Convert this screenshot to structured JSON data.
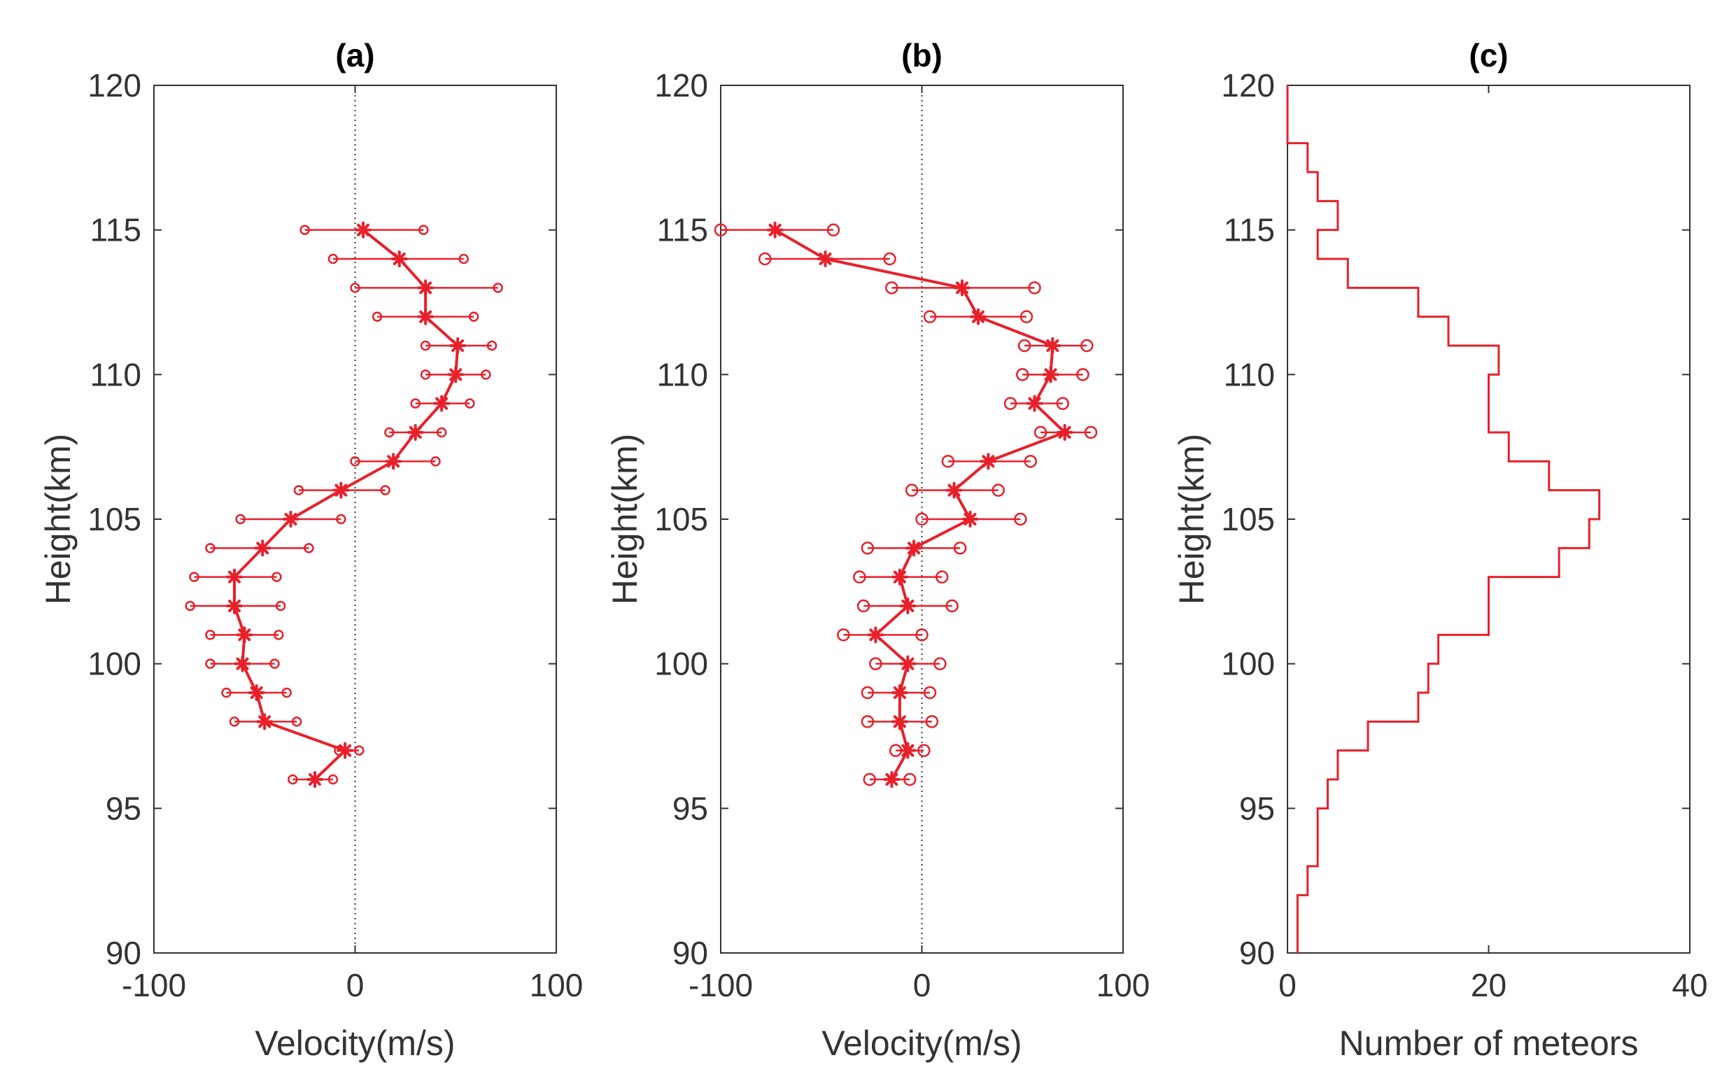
{
  "colors": {
    "series": "#e8202a",
    "axis": "#333333"
  },
  "chart_data": [
    {
      "type": "line",
      "title": "(a)",
      "xlabel": "Velocity(m/s)",
      "ylabel": "Height(km)",
      "xlim": [
        -100,
        100
      ],
      "ylim": [
        90,
        120
      ],
      "xticks": [
        -100,
        0,
        100
      ],
      "yticks": [
        90,
        95,
        100,
        105,
        110,
        115,
        120
      ],
      "zero_line": true,
      "heights": [
        115,
        114,
        113,
        112,
        111,
        110,
        109,
        108,
        107,
        106,
        105,
        104,
        103,
        102,
        101,
        100,
        99,
        98,
        97,
        96
      ],
      "values": [
        4,
        22,
        35,
        35,
        51,
        50,
        43,
        30,
        19,
        -7,
        -32,
        -46,
        -60,
        -60,
        -55,
        -56,
        -49,
        -45,
        -5,
        -20
      ],
      "lower": [
        -25,
        -11,
        0,
        11,
        35,
        35,
        30,
        17,
        0,
        -28,
        -57,
        -72,
        -80,
        -82,
        -72,
        -72,
        -64,
        -60,
        -8,
        -31
      ],
      "upper": [
        34,
        54,
        71,
        59,
        68,
        65,
        57,
        43,
        40,
        15,
        -7,
        -23,
        -39,
        -37,
        -38,
        -40,
        -34,
        -29,
        2,
        -11
      ],
      "marker": "asterisk",
      "bound_marker": "small-circle"
    },
    {
      "type": "line",
      "title": "(b)",
      "xlabel": "Velocity(m/s)",
      "ylabel": "Height(km)",
      "xlim": [
        -100,
        100
      ],
      "ylim": [
        90,
        120
      ],
      "xticks": [
        -100,
        0,
        100
      ],
      "yticks": [
        90,
        95,
        100,
        105,
        110,
        115,
        120
      ],
      "zero_line": true,
      "heights": [
        115,
        114,
        113,
        112,
        111,
        110,
        109,
        108,
        107,
        106,
        105,
        104,
        103,
        102,
        101,
        100,
        99,
        98,
        97,
        96
      ],
      "values": [
        -73,
        -48,
        20,
        28,
        65,
        64,
        56,
        71,
        33,
        16,
        24,
        -4,
        -11,
        -7,
        -23,
        -7,
        -11,
        -11,
        -7,
        -15
      ],
      "lower": [
        -100,
        -78,
        -15,
        4,
        51,
        50,
        44,
        59,
        13,
        -5,
        0,
        -27,
        -31,
        -29,
        -39,
        -23,
        -27,
        -27,
        -13,
        -26
      ],
      "upper": [
        -44,
        -16,
        56,
        52,
        82,
        80,
        70,
        84,
        54,
        38,
        49,
        19,
        10,
        15,
        0,
        9,
        4,
        5,
        1,
        -6
      ],
      "marker": "asterisk",
      "bound_marker": "circle"
    },
    {
      "type": "histogram",
      "title": "(c)",
      "xlabel": "Number of meteors",
      "ylabel": "Height(km)",
      "xlim": [
        0,
        40
      ],
      "ylim": [
        90,
        120
      ],
      "xticks": [
        0,
        20,
        40
      ],
      "yticks": [
        90,
        95,
        100,
        105,
        110,
        115,
        120
      ],
      "bins": [
        [
          90,
          91
        ],
        [
          91,
          92
        ],
        [
          92,
          93
        ],
        [
          93,
          94
        ],
        [
          94,
          95
        ],
        [
          95,
          96
        ],
        [
          96,
          97
        ],
        [
          97,
          98
        ],
        [
          98,
          99
        ],
        [
          99,
          100
        ],
        [
          100,
          101
        ],
        [
          101,
          102
        ],
        [
          102,
          103
        ],
        [
          103,
          104
        ],
        [
          104,
          105
        ],
        [
          105,
          106
        ],
        [
          106,
          107
        ],
        [
          107,
          108
        ],
        [
          108,
          109
        ],
        [
          109,
          110
        ],
        [
          110,
          111
        ],
        [
          111,
          112
        ],
        [
          112,
          113
        ],
        [
          113,
          114
        ],
        [
          114,
          115
        ],
        [
          115,
          116
        ],
        [
          116,
          117
        ],
        [
          117,
          118
        ],
        [
          118,
          119
        ],
        [
          119,
          120
        ]
      ],
      "counts": [
        1,
        1,
        2,
        3,
        3,
        4,
        5,
        8,
        13,
        14,
        15,
        20,
        20,
        27,
        30,
        31,
        26,
        22,
        20,
        20,
        21,
        16,
        13,
        6,
        3,
        5,
        3,
        2,
        0,
        0
      ]
    }
  ]
}
